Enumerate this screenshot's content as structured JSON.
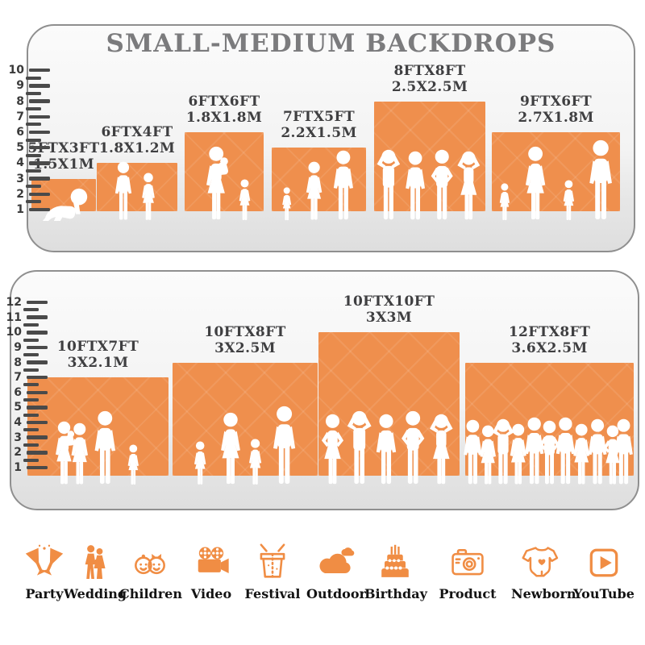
{
  "title": "SMALL-MEDIUM BACKDROPS",
  "colors": {
    "backdrop_orange": "#EF8F4D",
    "icon_orange": "#F08D44",
    "title_gray": "#7B7B7D",
    "label_dark": "#3F3F41",
    "ruler_dark": "#4A4A4A"
  },
  "panels": [
    {
      "name": "small-backdrops-panel",
      "ruler_max": 10,
      "items": [
        {
          "size_ft": "5FTX3FT",
          "size_m": "1.5X1M",
          "w_ft": 5,
          "h_ft": 3,
          "figures": [
            "baby-crawl"
          ]
        },
        {
          "size_ft": "6FTX4FT",
          "size_m": "1.8X1.2M",
          "w_ft": 6,
          "h_ft": 4,
          "figures": [
            "boy",
            "girl"
          ]
        },
        {
          "size_ft": "6FTX6FT",
          "size_m": "1.8X1.8M",
          "w_ft": 6,
          "h_ft": 6,
          "figures": [
            "woman-baby",
            "girl"
          ]
        },
        {
          "size_ft": "7FTX5FT",
          "size_m": "2.2X1.5M",
          "w_ft": 7,
          "h_ft": 5,
          "figures": [
            "girl",
            "woman",
            "man"
          ]
        },
        {
          "size_ft": "8FTX8FT",
          "size_m": "2.5X2.5M",
          "w_ft": 8,
          "h_ft": 8,
          "figures": [
            "man-armsup",
            "man",
            "man-hips",
            "woman-armsup"
          ]
        },
        {
          "size_ft": "9FTX6FT",
          "size_m": "2.7X1.8M",
          "w_ft": 9,
          "h_ft": 6,
          "figures": [
            "girl",
            "woman",
            "girl",
            "man"
          ]
        }
      ]
    },
    {
      "name": "medium-backdrops-panel",
      "ruler_max": 12,
      "items": [
        {
          "size_ft": "10FTX7FT",
          "size_m": "3X2.1M",
          "w_ft": 10,
          "h_ft": 7,
          "figures": [
            "woman-baby",
            "woman",
            "man",
            "girl"
          ]
        },
        {
          "size_ft": "10FTX8FT",
          "size_m": "3X2.5M",
          "w_ft": 10,
          "h_ft": 8,
          "figures": [
            "girl",
            "woman",
            "girl",
            "man"
          ]
        },
        {
          "size_ft": "10FTX10FT",
          "size_m": "3X3M",
          "w_ft": 10,
          "h_ft": 10,
          "figures": [
            "woman-hips",
            "man-armsup",
            "man",
            "man-hips",
            "woman-armsup"
          ]
        },
        {
          "size_ft": "12FTX8FT",
          "size_m": "3.6X2.5M",
          "w_ft": 12,
          "h_ft": 8,
          "figures": [
            "man",
            "woman",
            "man-armsup",
            "woman",
            "man",
            "man-hips",
            "man",
            "woman",
            "man",
            "woman-hips",
            "man"
          ]
        }
      ]
    }
  ],
  "categories": [
    {
      "label": "Party",
      "icon": "party-icon"
    },
    {
      "label": "Wedding",
      "icon": "wedding-icon"
    },
    {
      "label": "Children",
      "icon": "children-icon"
    },
    {
      "label": "Video",
      "icon": "video-icon"
    },
    {
      "label": "Festival",
      "icon": "festival-icon"
    },
    {
      "label": "Outdoor",
      "icon": "outdoor-icon"
    },
    {
      "label": "Birthday",
      "icon": "birthday-icon"
    },
    {
      "label": "Product",
      "icon": "product-icon"
    },
    {
      "label": "Newborn",
      "icon": "newborn-icon"
    },
    {
      "label": "YouTube",
      "icon": "youtube-icon"
    }
  ]
}
